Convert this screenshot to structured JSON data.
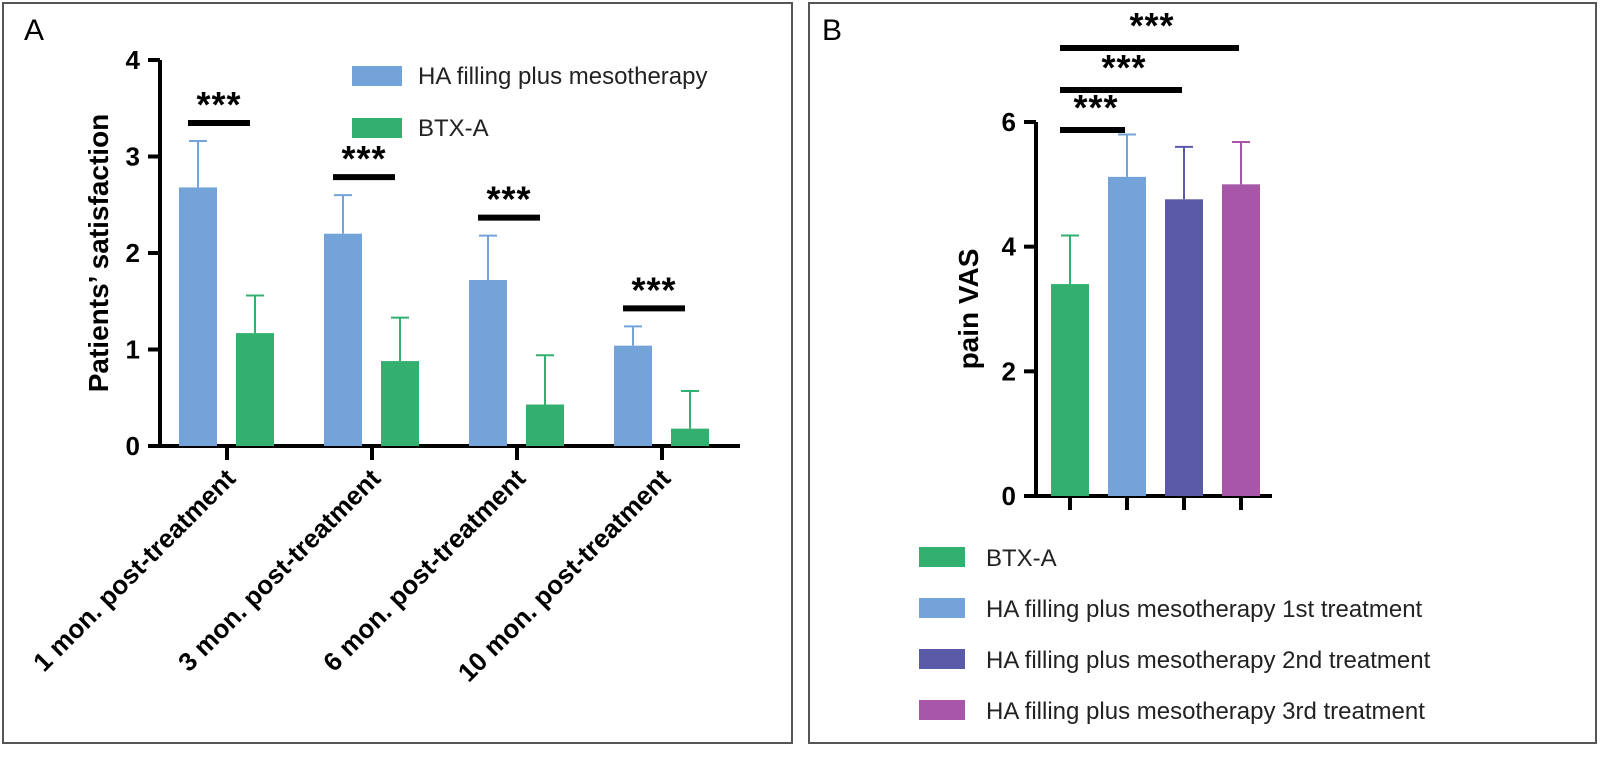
{
  "chart_data": [
    {
      "panel": "A",
      "type": "bar",
      "ylabel": "Patients’ satisfaction",
      "ylim": [
        0,
        4
      ],
      "yticks": [
        "0",
        "1",
        "2",
        "3",
        "4"
      ],
      "categories": [
        "1 mon. post-treatment",
        "3 mon. post-treatment",
        "6 mon. post-treatment",
        "10 mon. post-treatment"
      ],
      "series": [
        {
          "name": "HA filling plus mesotherapy",
          "color": "#74a3d9",
          "values": [
            2.68,
            2.2,
            1.72,
            1.04
          ],
          "errors": [
            0.48,
            0.4,
            0.46,
            0.2
          ]
        },
        {
          "name": "BTX-A",
          "color": "#33b06f",
          "values": [
            1.17,
            0.88,
            0.43,
            0.18
          ],
          "errors": [
            0.39,
            0.45,
            0.51,
            0.39
          ]
        }
      ],
      "significance": [
        "***",
        "***",
        "***",
        "***"
      ],
      "legend_position": "top-right"
    },
    {
      "panel": "B",
      "type": "bar",
      "ylabel": "pain VAS",
      "ylim": [
        0,
        6
      ],
      "yticks": [
        "0",
        "2",
        "4",
        "6"
      ],
      "categories": [
        "BTX-A",
        "HA filling plus mesotherapy 1st treatment",
        "HA filling plus mesotherapy 2nd treatment",
        "HA filling plus mesotherapy 3rd treatment"
      ],
      "values": [
        3.4,
        5.12,
        4.76,
        5.0
      ],
      "errors": [
        0.78,
        0.68,
        0.84,
        0.68
      ],
      "colors": [
        "#33b06f",
        "#74a3d9",
        "#5a5aa8",
        "#a756a8"
      ],
      "significance": [
        {
          "from": 0,
          "to": 1,
          "label": "***"
        },
        {
          "from": 0,
          "to": 2,
          "label": "***"
        },
        {
          "from": 0,
          "to": 3,
          "label": "***"
        }
      ],
      "legend_position": "bottom"
    }
  ]
}
